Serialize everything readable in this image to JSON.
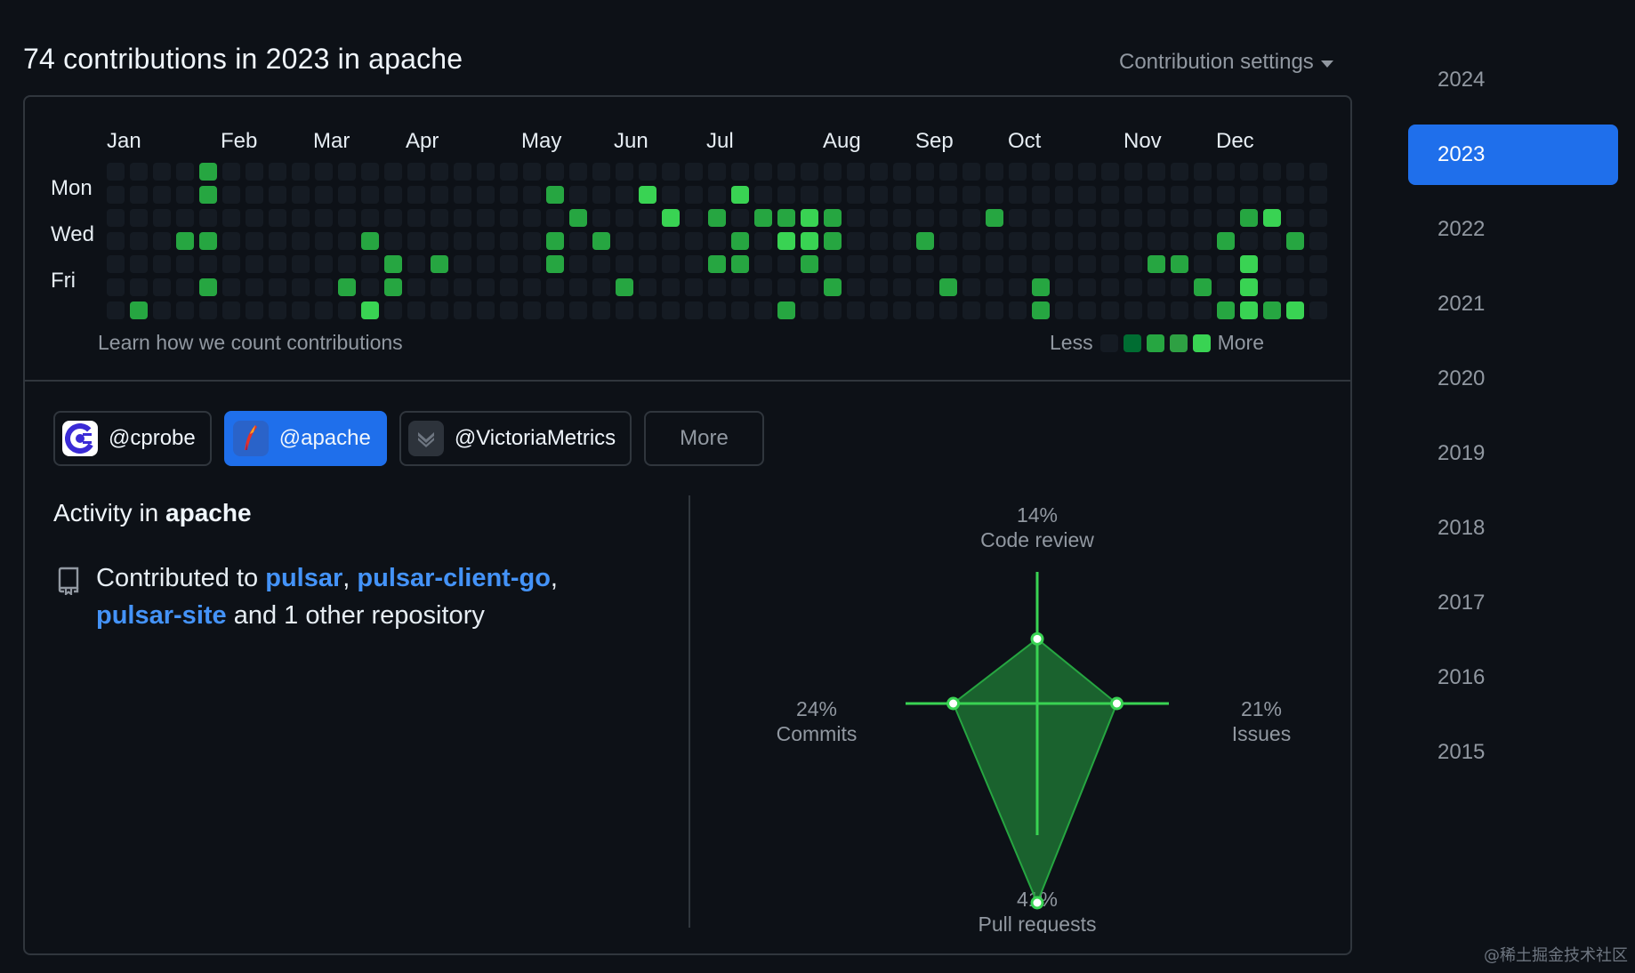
{
  "heading": "74 contributions in 2023 in apache",
  "settings_label": "Contribution settings",
  "months": [
    "Jan",
    "Feb",
    "Mar",
    "Apr",
    "May",
    "Jun",
    "Jul",
    "Aug",
    "Sep",
    "Oct",
    "Nov",
    "Dec"
  ],
  "days": [
    "Mon",
    "Wed",
    "Fri"
  ],
  "learn_link": "Learn how we count contributions",
  "legend": {
    "less": "Less",
    "more": "More"
  },
  "calendar": [
    [
      0,
      0,
      0,
      0,
      3,
      0,
      0,
      0,
      0,
      0,
      0,
      0,
      0,
      0,
      0,
      0,
      0,
      0,
      0,
      0,
      0,
      0,
      0,
      0,
      0,
      0,
      0,
      0,
      0,
      0,
      0,
      0,
      0,
      0,
      0,
      0,
      0,
      0,
      0,
      0,
      0,
      0,
      0,
      0,
      0,
      0,
      0,
      0,
      0,
      0,
      0,
      0,
      0,
      0
    ],
    [
      0,
      0,
      0,
      0,
      3,
      0,
      0,
      0,
      0,
      0,
      0,
      0,
      0,
      0,
      0,
      0,
      0,
      0,
      0,
      3,
      0,
      0,
      0,
      4,
      0,
      0,
      0,
      4,
      0,
      0,
      0,
      0,
      0,
      0,
      0,
      0,
      0,
      0,
      0,
      0,
      0,
      0,
      0,
      0,
      0,
      0,
      0,
      0,
      0,
      0,
      0,
      0,
      0,
      0
    ],
    [
      0,
      0,
      0,
      0,
      0,
      0,
      0,
      0,
      0,
      0,
      0,
      0,
      0,
      0,
      0,
      0,
      0,
      0,
      0,
      0,
      3,
      0,
      0,
      0,
      4,
      0,
      3,
      0,
      3,
      3,
      4,
      3,
      0,
      0,
      0,
      0,
      0,
      0,
      3,
      0,
      0,
      0,
      0,
      0,
      0,
      0,
      0,
      0,
      0,
      3,
      4,
      0,
      0,
      0,
      3,
      0
    ],
    [
      0,
      0,
      0,
      3,
      3,
      0,
      0,
      0,
      0,
      0,
      0,
      3,
      0,
      0,
      0,
      0,
      0,
      0,
      0,
      3,
      0,
      3,
      0,
      0,
      0,
      0,
      0,
      3,
      0,
      4,
      4,
      3,
      0,
      0,
      0,
      3,
      0,
      0,
      0,
      0,
      0,
      0,
      0,
      0,
      0,
      0,
      0,
      0,
      3,
      0,
      0,
      3,
      0,
      0,
      0
    ],
    [
      0,
      0,
      0,
      0,
      0,
      0,
      0,
      0,
      0,
      0,
      0,
      0,
      3,
      0,
      3,
      0,
      0,
      0,
      0,
      3,
      0,
      0,
      0,
      0,
      0,
      0,
      3,
      3,
      0,
      0,
      3,
      0,
      0,
      0,
      0,
      0,
      0,
      0,
      0,
      0,
      0,
      0,
      0,
      0,
      0,
      3,
      3,
      0,
      0,
      4,
      0,
      0,
      0,
      3,
      0
    ],
    [
      0,
      0,
      0,
      0,
      3,
      0,
      0,
      0,
      0,
      0,
      3,
      0,
      3,
      0,
      0,
      0,
      0,
      0,
      0,
      0,
      0,
      0,
      3,
      0,
      0,
      0,
      0,
      0,
      0,
      0,
      0,
      3,
      0,
      0,
      0,
      0,
      3,
      0,
      0,
      0,
      3,
      0,
      0,
      0,
      0,
      0,
      0,
      3,
      0,
      4,
      0,
      0,
      0,
      3,
      3
    ],
    [
      0,
      3,
      0,
      0,
      0,
      0,
      0,
      0,
      0,
      0,
      0,
      4,
      0,
      0,
      0,
      0,
      0,
      0,
      0,
      0,
      0,
      0,
      0,
      0,
      0,
      0,
      0,
      0,
      0,
      3,
      0,
      0,
      0,
      0,
      0,
      0,
      0,
      0,
      0,
      0,
      3,
      0,
      0,
      0,
      0,
      0,
      0,
      0,
      3,
      4,
      3,
      4,
      0,
      0,
      0
    ]
  ],
  "orgs": [
    {
      "handle": "@cprobe",
      "active": false
    },
    {
      "handle": "@apache",
      "active": true
    },
    {
      "handle": "@VictoriaMetrics",
      "active": false
    }
  ],
  "orgs_more": "More",
  "activity": {
    "title_prefix": "Activity in",
    "title_org": "apache",
    "contrib_prefix": "Contributed to",
    "repo1": "pulsar",
    "sep1": ",",
    "repo2": "pulsar-client-go",
    "sep2": ",",
    "repo3": "pulsar-site",
    "suffix": "and 1 other repository"
  },
  "radar": {
    "code_review": {
      "pct": "14%",
      "label": "Code review",
      "value": 14
    },
    "issues": {
      "pct": "21%",
      "label": "Issues",
      "value": 21
    },
    "pull_requests": {
      "pct": "41%",
      "label": "Pull requests",
      "value": 41
    },
    "commits": {
      "pct": "24%",
      "label": "Commits",
      "value": 24
    },
    "fill": "#26a641",
    "stroke": "#39d353"
  },
  "years": [
    "2024",
    "2023",
    "2022",
    "2021",
    "2020",
    "2019",
    "2018",
    "2017",
    "2016",
    "2015"
  ],
  "active_year": "2023",
  "watermark": "@稀土掘金技术社区"
}
